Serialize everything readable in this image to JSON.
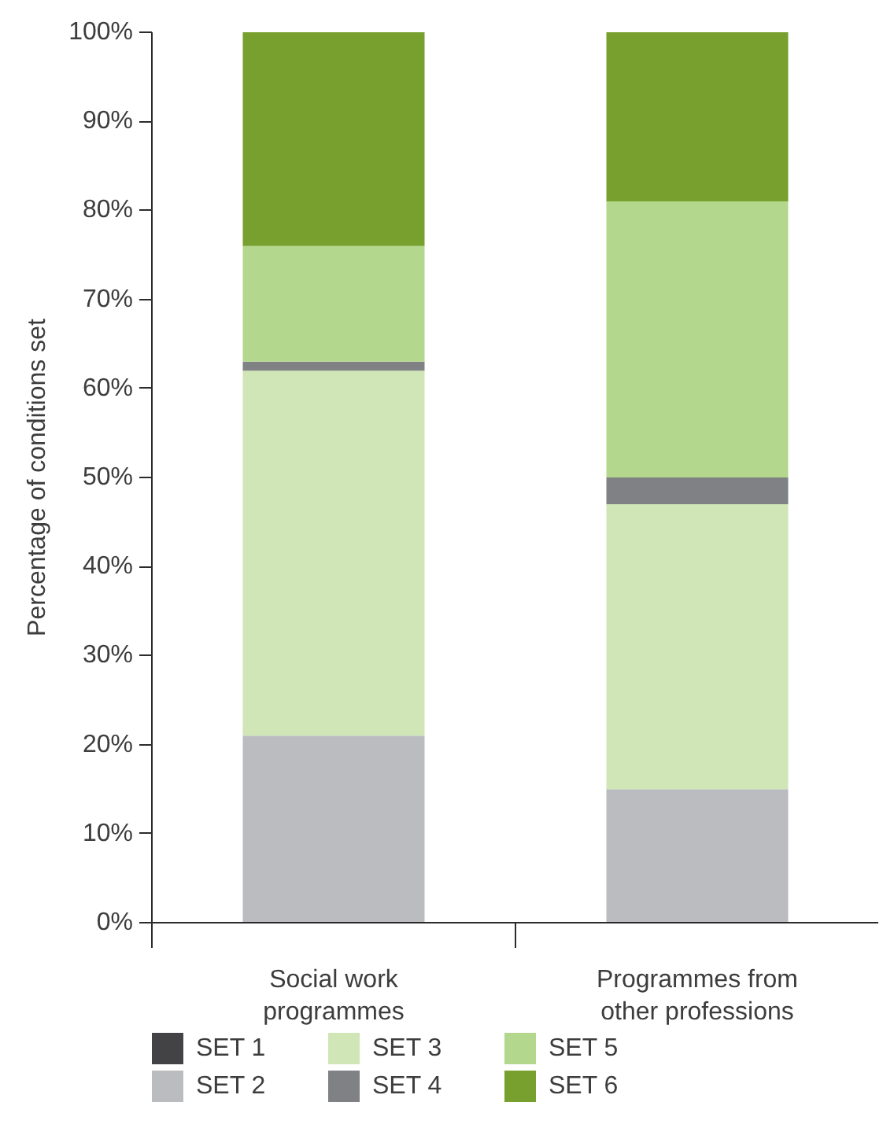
{
  "chart_data": {
    "type": "bar",
    "stacked": true,
    "ylabel": "Percentage of conditions set",
    "categories": [
      "Social work programmes",
      "Programmes from other professions"
    ],
    "series": [
      {
        "name": "SET 1",
        "color": "#434345",
        "values": [
          0,
          0
        ]
      },
      {
        "name": "SET 2",
        "color": "#bbbcbf",
        "values": [
          21,
          15
        ]
      },
      {
        "name": "SET 3",
        "color": "#d0e6b6",
        "values": [
          41,
          32
        ]
      },
      {
        "name": "SET 4",
        "color": "#808184",
        "values": [
          1,
          3
        ]
      },
      {
        "name": "SET 5",
        "color": "#b3d78d",
        "values": [
          13,
          31
        ]
      },
      {
        "name": "SET 6",
        "color": "#78a02e",
        "values": [
          24,
          19
        ]
      }
    ],
    "ylim": [
      0,
      100
    ],
    "yticks": [
      {
        "value": 0,
        "label": "0%"
      },
      {
        "value": 10,
        "label": "10%"
      },
      {
        "value": 20,
        "label": "20%"
      },
      {
        "value": 30,
        "label": "30%"
      },
      {
        "value": 40,
        "label": "40%"
      },
      {
        "value": 50,
        "label": "50%"
      },
      {
        "value": 60,
        "label": "60%"
      },
      {
        "value": 70,
        "label": "70%"
      },
      {
        "value": 80,
        "label": "80%"
      },
      {
        "value": 90,
        "label": "90%"
      },
      {
        "value": 100,
        "label": "100%"
      }
    ],
    "legend": "bottom"
  }
}
